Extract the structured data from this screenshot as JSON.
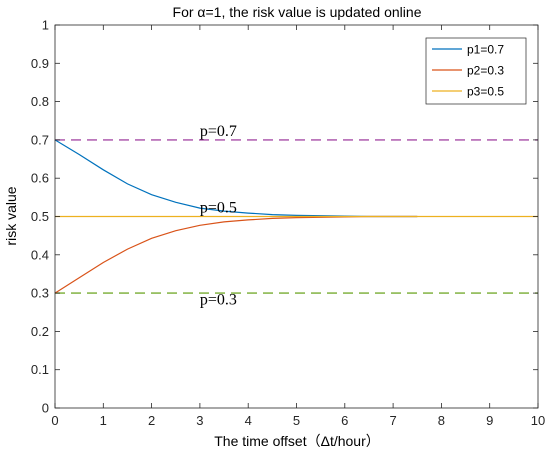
{
  "chart_data": {
    "type": "line",
    "title": "For α=1, the risk value is updated online",
    "xlabel": "The time offset（Δt/hour）",
    "ylabel": "risk value",
    "xlim": [
      0,
      10
    ],
    "ylim": [
      0,
      1
    ],
    "xticks": [
      "0",
      "1",
      "2",
      "3",
      "4",
      "5",
      "6",
      "7",
      "8",
      "9",
      "10"
    ],
    "yticks": [
      "0",
      "0.1",
      "0.2",
      "0.3",
      "0.4",
      "0.5",
      "0.6",
      "0.7",
      "0.8",
      "0.9",
      "1"
    ],
    "grid": false,
    "legend_position": "top-right",
    "series": [
      {
        "name": "p1=0.7",
        "color": "#0072BD",
        "x": [
          0,
          0.5,
          1,
          1.5,
          2,
          2.5,
          3,
          3.5,
          4,
          4.5,
          5,
          5.5,
          6,
          6.5,
          7,
          7.5
        ],
        "y": [
          0.7,
          0.662,
          0.622,
          0.585,
          0.557,
          0.537,
          0.522,
          0.514,
          0.509,
          0.505,
          0.503,
          0.502,
          0.501,
          0.5,
          0.5,
          0.5
        ]
      },
      {
        "name": "p2=0.3",
        "color": "#D95319",
        "x": [
          0,
          0.5,
          1,
          1.5,
          2,
          2.5,
          3,
          3.5,
          4,
          4.5,
          5,
          5.5,
          6,
          6.5,
          7,
          7.5
        ],
        "y": [
          0.3,
          0.34,
          0.38,
          0.415,
          0.443,
          0.463,
          0.477,
          0.486,
          0.491,
          0.495,
          0.497,
          0.498,
          0.499,
          0.5,
          0.5,
          0.5
        ]
      },
      {
        "name": "p3=0.5",
        "color": "#EDB120",
        "x": [
          0,
          10
        ],
        "y": [
          0.5,
          0.5
        ]
      }
    ],
    "reference_lines": [
      {
        "y": 0.7,
        "color": "#A64CA6",
        "label": "p=0.7"
      },
      {
        "y": 0.3,
        "color": "#77AC30",
        "label": "p=0.3"
      }
    ],
    "annotations": [
      {
        "text": "p=0.7",
        "x": 3.0,
        "y": 0.71
      },
      {
        "text": "p=0.5",
        "x": 3.0,
        "y": 0.51
      },
      {
        "text": "p=0.3",
        "x": 3.0,
        "y": 0.27
      }
    ]
  }
}
